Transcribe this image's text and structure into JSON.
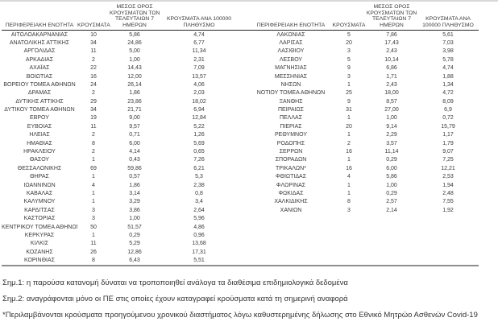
{
  "table": {
    "header": {
      "region": "ΠΕΡΙΦΕΡΕΙΑΚΗ ΕΝΟΤΗΤΑ",
      "cases": "ΚΡΟΥΣΜΑΤΑ",
      "avg7_lines": [
        "ΜΕΣΟΣ ΟΡΟΣ",
        "ΚΡΟΥΣΜΑΤΩΝ ΤΩΝ",
        "ΤΕΛΕΥΤΑΙΩΝ 7",
        "ΗΜΕΡΩΝ"
      ],
      "per100k_left_lines": [
        "ΚΡΟΥΣΜΑΤΑ ΑΝΑ 100000",
        "ΠΛΗΘΥΣΜΟ"
      ],
      "per100k_right_lines": [
        "ΚΡΟΥΣΜΑΤΑ ΑΝΑ",
        "100000 ΠΛΗΘΥΣΜΟ"
      ]
    },
    "left_rows": [
      {
        "region": "ΑΙΤΩΛΟΑΚΑΡΝΑΝΙΑΣ",
        "cases": "10",
        "avg7": "5,86",
        "per100k": "4,74"
      },
      {
        "region": "ΑΝΑΤΟΛΙΚΗΣ ΑΤΤΙΚΗΣ",
        "cases": "34",
        "avg7": "24,86",
        "per100k": "6,77"
      },
      {
        "region": "ΑΡΓΟΛΙΔΑΣ",
        "cases": "11",
        "avg7": "5,00",
        "per100k": "11,34"
      },
      {
        "region": "ΑΡΚΑΔΙΑΣ",
        "cases": "2",
        "avg7": "1,00",
        "per100k": "2,31"
      },
      {
        "region": "ΑΧΑΪΑΣ",
        "cases": "22",
        "avg7": "14,43",
        "per100k": "7,09"
      },
      {
        "region": "ΒΟΙΩΤΙΑΣ",
        "cases": "16",
        "avg7": "12,00",
        "per100k": "13,57"
      },
      {
        "region": "ΒΟΡΕΙΟΥ ΤΟΜΕΑ ΑΘΗΝΩΝ",
        "cases": "24",
        "avg7": "26,14",
        "per100k": "4,06"
      },
      {
        "region": "ΔΡΑΜΑΣ",
        "cases": "2",
        "avg7": "1,86",
        "per100k": "2,03"
      },
      {
        "region": "ΔΥΤΙΚΗΣ ΑΤΤΙΚΗΣ",
        "cases": "29",
        "avg7": "23,86",
        "per100k": "18,02"
      },
      {
        "region": "ΔΥΤΙΚΟΥ ΤΟΜΕΑ ΑΘΗΝΩΝ",
        "cases": "34",
        "avg7": "21,71",
        "per100k": "6,94"
      },
      {
        "region": "ΕΒΡΟΥ",
        "cases": "19",
        "avg7": "9,00",
        "per100k": "12,84"
      },
      {
        "region": "ΕΥΒΟΙΑΣ",
        "cases": "11",
        "avg7": "9,57",
        "per100k": "5,22"
      },
      {
        "region": "ΗΛΕΙΑΣ",
        "cases": "2",
        "avg7": "0,71",
        "per100k": "1,26"
      },
      {
        "region": "ΗΜΑΘΙΑΣ",
        "cases": "8",
        "avg7": "6,00",
        "per100k": "5,69"
      },
      {
        "region": "ΗΡΑΚΛΕΙΟΥ",
        "cases": "2",
        "avg7": "4,14",
        "per100k": "0,65"
      },
      {
        "region": "ΘΑΣΟΥ",
        "cases": "1",
        "avg7": "0,43",
        "per100k": "7,26"
      },
      {
        "region": "ΘΕΣΣΑΛΟΝΙΚΗΣ",
        "cases": "69",
        "avg7": "59,86",
        "per100k": "6,21"
      },
      {
        "region": "ΘΗΡΑΣ",
        "cases": "1",
        "avg7": "0,57",
        "per100k": "5,3"
      },
      {
        "region": "ΙΩΑΝΝΙΝΩΝ",
        "cases": "4",
        "avg7": "1,86",
        "per100k": "2,38"
      },
      {
        "region": "ΚΑΒΑΛΑΣ",
        "cases": "1",
        "avg7": "3,14",
        "per100k": "0,8"
      },
      {
        "region": "ΚΑΛΥΜΝΟΥ",
        "cases": "1",
        "avg7": "3,29",
        "per100k": "3,4"
      },
      {
        "region": "ΚΑΡΔΙΤΣΑΣ",
        "cases": "3",
        "avg7": "3,86",
        "per100k": "2,64"
      },
      {
        "region": "ΚΑΣΤΟΡΙΑΣ",
        "cases": "3",
        "avg7": "1,00",
        "per100k": "5,96"
      },
      {
        "region": "ΚΕΝΤΡΙΚΟΥ ΤΟΜΕΑ ΑΘΗΝΩΝ",
        "cases": "50",
        "avg7": "51,57",
        "per100k": "4,86"
      },
      {
        "region": "ΚΕΡΚΥΡΑΣ",
        "cases": "1",
        "avg7": "0,29",
        "per100k": "0,96"
      },
      {
        "region": "ΚΙΛΚΙΣ",
        "cases": "11",
        "avg7": "5,29",
        "per100k": "13,68"
      },
      {
        "region": "ΚΟΖΑΝΗΣ",
        "cases": "26",
        "avg7": "12,86",
        "per100k": "17,31"
      },
      {
        "region": "ΚΟΡΙΝΘΙΑΣ",
        "cases": "8",
        "avg7": "6,43",
        "per100k": "5,51"
      }
    ],
    "right_rows": [
      {
        "region": "ΛΑΚΩΝΙΑΣ",
        "cases": "5",
        "avg7": "7,86",
        "per100k": "5,61"
      },
      {
        "region": "ΛΑΡΙΣΑΣ",
        "cases": "20",
        "avg7": "17,43",
        "per100k": "7,03"
      },
      {
        "region": "ΛΑΣΙΘΙΟΥ",
        "cases": "3",
        "avg7": "2,43",
        "per100k": "3,98"
      },
      {
        "region": "ΛΕΣΒΟΥ",
        "cases": "5",
        "avg7": "10,14",
        "per100k": "5,78"
      },
      {
        "region": "ΜΑΓΝΗΣΙΑΣ",
        "cases": "9",
        "avg7": "6,86",
        "per100k": "4,74"
      },
      {
        "region": "ΜΕΣΣΗΝΙΑΣ",
        "cases": "3",
        "avg7": "1,71",
        "per100k": "1,88"
      },
      {
        "region": "ΝΗΣΩΝ",
        "cases": "1",
        "avg7": "2,43",
        "per100k": "1,34"
      },
      {
        "region": "ΝΟΤΙΟΥ ΤΟΜΕΑ ΑΘΗΝΩΝ",
        "cases": "25",
        "avg7": "18,00",
        "per100k": "4,72"
      },
      {
        "region": "ΞΑΝΘΗΣ",
        "cases": "9",
        "avg7": "8,57",
        "per100k": "8,09"
      },
      {
        "region": "ΠΕΙΡΑΙΩΣ",
        "cases": "31",
        "avg7": "27,00",
        "per100k": "6,9"
      },
      {
        "region": "ΠΕΛΛΑΣ",
        "cases": "1",
        "avg7": "1,00",
        "per100k": "0,72"
      },
      {
        "region": "ΠΙΕΡΙΑΣ",
        "cases": "20",
        "avg7": "9,14",
        "per100k": "15,79"
      },
      {
        "region": "ΡΕΘΥΜΝΟΥ",
        "cases": "1",
        "avg7": "2,29",
        "per100k": "1,17"
      },
      {
        "region": "ΡΟΔΟΠΗΣ",
        "cases": "2",
        "avg7": "3,57",
        "per100k": "1,79"
      },
      {
        "region": "ΣΕΡΡΩΝ",
        "cases": "16",
        "avg7": "11,14",
        "per100k": "9,07"
      },
      {
        "region": "ΣΠΟΡΑΔΩΝ",
        "cases": "1",
        "avg7": "0,29",
        "per100k": "7,25"
      },
      {
        "region": "ΤΡΙΚΑΛΩΝ*",
        "cases": "16",
        "avg7": "6,00",
        "per100k": "12,21"
      },
      {
        "region": "ΦΘΙΩΤΙΔΑΣ",
        "cases": "4",
        "avg7": "5,86",
        "per100k": "2,53"
      },
      {
        "region": "ΦΛΩΡΙΝΑΣ",
        "cases": "1",
        "avg7": "1,00",
        "per100k": "1,94"
      },
      {
        "region": "ΦΩΚΙΔΑΣ",
        "cases": "1",
        "avg7": "0,29",
        "per100k": "2,48"
      },
      {
        "region": "ΧΑΛΚΙΔΙΚΗΣ",
        "cases": "8",
        "avg7": "2,57",
        "per100k": "7,55"
      },
      {
        "region": "ΧΑΝΙΩΝ",
        "cases": "3",
        "avg7": "2,14",
        "per100k": "1,92"
      }
    ]
  },
  "notes": [
    "Σημ.1: η παρούσα κατανομή δύναται να τροποποιηθεί ανάλογα τα διαθέσιμα επιδημιολογικά δεδομένα",
    "Σημ.2: αναγράφονται μόνο οι ΠΕ στις οποίες έχουν καταγραφεί κρούσματα κατά τη σημερινή αναφορά",
    "*Περιλαμβάνονται κρούσματα προηγούμενου χρονικού διαστήματος λόγω καθυστερημένης δήλωσης στο Εθνικό Μητρώο Ασθενών Covid-19"
  ],
  "colors": {
    "text": "#3a3a3a",
    "header_rule": "#262626",
    "bottom_rule": "#8d8d8d",
    "top_edge": "#d8d8d8"
  }
}
